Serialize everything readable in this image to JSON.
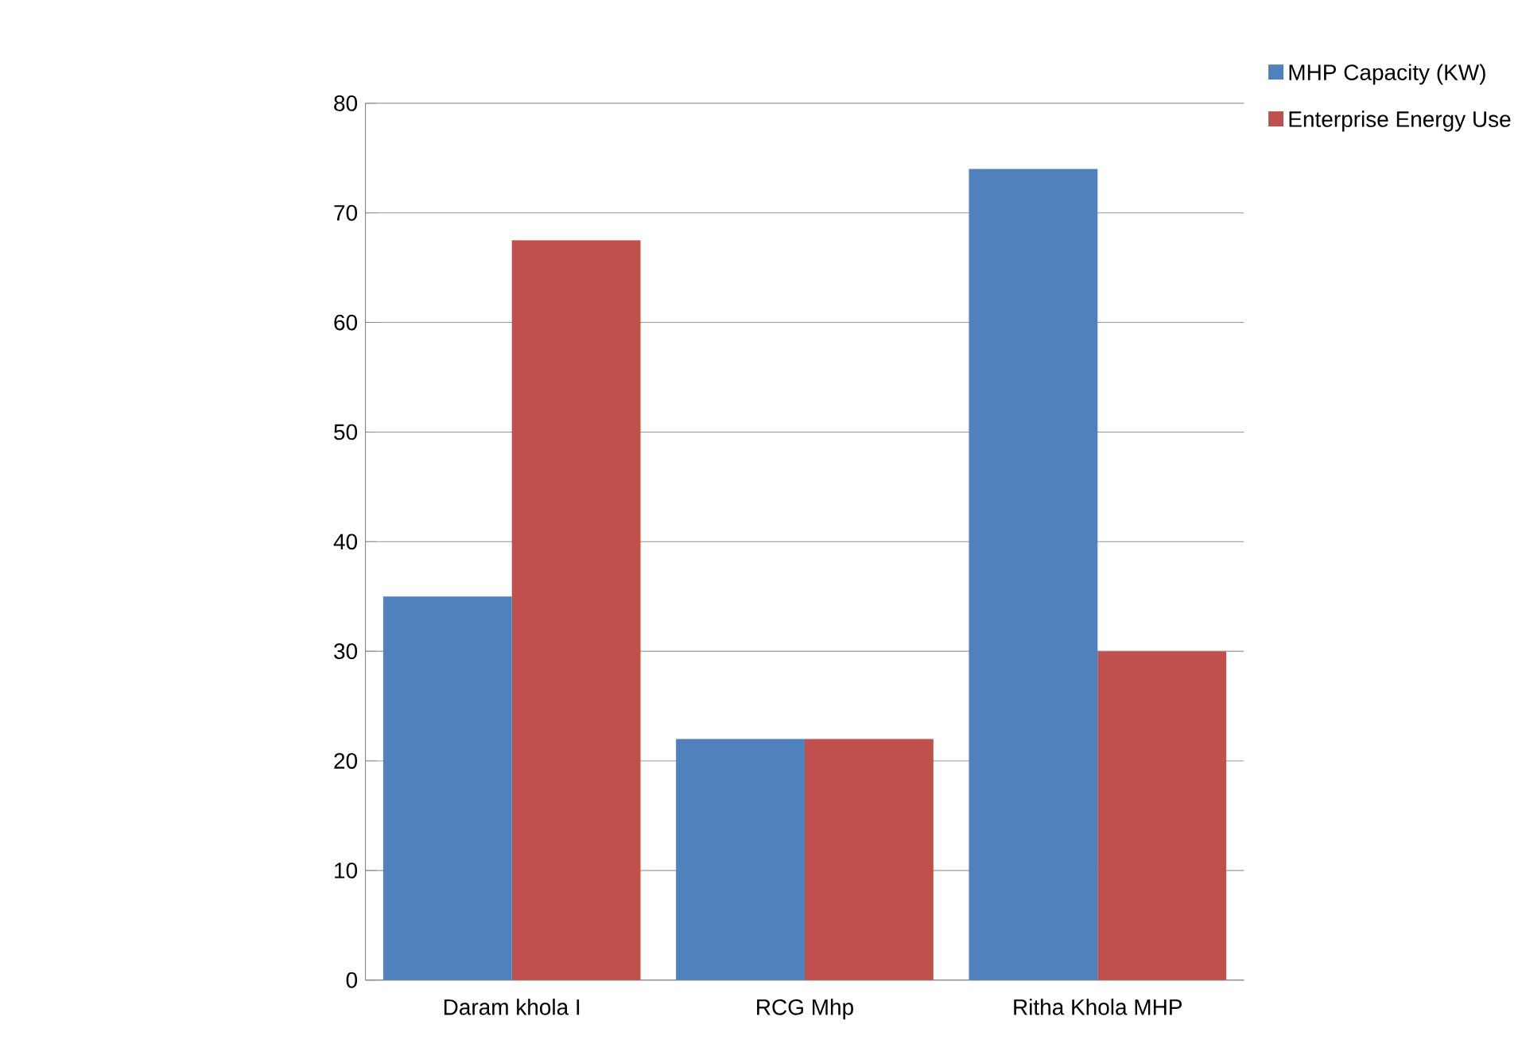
{
  "chart_data": {
    "type": "bar",
    "categories": [
      "Daram khola I",
      "RCG Mhp",
      "Ritha Khola MHP"
    ],
    "series": [
      {
        "name": "MHP Capacity (KW)",
        "color": "#4f81bd",
        "values": [
          35,
          22,
          74
        ]
      },
      {
        "name": "Enterprise Energy Use",
        "color": "#c0504d",
        "values": [
          67.5,
          22,
          30
        ]
      }
    ],
    "ylim": [
      0,
      80
    ],
    "yticks": [
      0,
      10,
      20,
      30,
      40,
      50,
      60,
      70,
      80
    ],
    "grid": "y",
    "legend": "top right"
  }
}
